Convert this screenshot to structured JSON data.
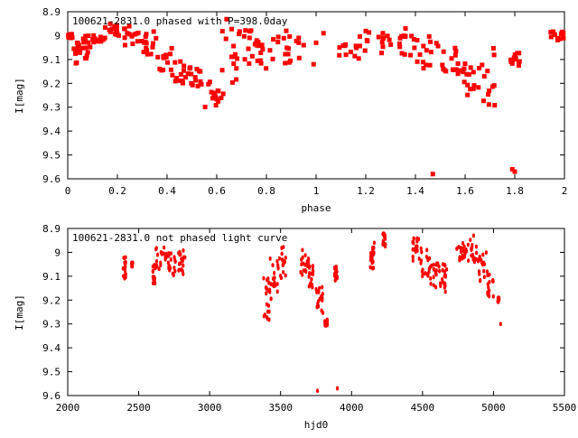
{
  "chart_data": [
    {
      "type": "scatter",
      "title": "100621-2831.0  phased with P=398.0day",
      "xlabel": "phase",
      "ylabel": "I[mag]",
      "xlim": [
        0,
        2
      ],
      "ylim": [
        9.6,
        8.9
      ],
      "y_inverted": true,
      "xticks": [
        "0",
        "0.2",
        "0.4",
        "0.6",
        "0.8",
        "1",
        "1.2",
        "1.4",
        "1.6",
        "1.8",
        "2"
      ],
      "yticks": [
        "8.9",
        "9",
        "9.1",
        "9.2",
        "9.3",
        "9.4",
        "9.5",
        "9.6"
      ],
      "marker_color": "#ff0000",
      "marker": "star",
      "grid": false,
      "segments": [
        [
          0.0,
          0.02,
          8.99,
          9.01
        ],
        [
          0.02,
          0.05,
          9.02,
          9.13
        ],
        [
          0.05,
          0.1,
          9.0,
          9.1
        ],
        [
          0.1,
          0.15,
          8.99,
          9.03
        ],
        [
          0.15,
          0.22,
          8.95,
          9.0
        ],
        [
          0.22,
          0.3,
          8.96,
          9.05
        ],
        [
          0.3,
          0.36,
          8.98,
          9.08
        ],
        [
          0.36,
          0.42,
          9.05,
          9.15
        ],
        [
          0.42,
          0.48,
          9.1,
          9.2
        ],
        [
          0.48,
          0.55,
          9.13,
          9.22
        ],
        [
          0.55,
          0.62,
          9.18,
          9.3
        ],
        [
          0.62,
          0.68,
          8.93,
          9.25
        ],
        [
          0.68,
          0.76,
          8.97,
          9.12
        ],
        [
          0.76,
          0.84,
          9.0,
          9.15
        ],
        [
          0.84,
          0.94,
          9.0,
          9.12
        ],
        [
          1.08,
          1.18,
          8.99,
          9.1
        ],
        [
          1.18,
          1.3,
          8.98,
          9.08
        ],
        [
          1.3,
          1.4,
          9.0,
          9.1
        ],
        [
          1.4,
          1.5,
          9.0,
          9.14
        ],
        [
          1.5,
          1.58,
          9.05,
          9.16
        ],
        [
          1.58,
          1.64,
          9.1,
          9.25
        ],
        [
          1.64,
          1.72,
          9.05,
          9.3
        ],
        [
          1.78,
          1.82,
          9.07,
          9.13
        ],
        [
          1.94,
          2.0,
          8.98,
          9.02
        ]
      ],
      "points": [
        [
          0.99,
          9.12
        ],
        [
          0.88,
          8.98
        ],
        [
          0.93,
          9.03
        ],
        [
          0.95,
          9.04
        ],
        [
          1.0,
          9.03
        ],
        [
          1.03,
          8.99
        ],
        [
          1.36,
          8.97
        ],
        [
          1.47,
          9.58
        ],
        [
          1.8,
          9.57
        ],
        [
          1.79,
          9.56
        ]
      ]
    },
    {
      "type": "scatter",
      "title": "100621-2831.0  not phased light curve",
      "xlabel": "hjd0",
      "ylabel": "I[mag]",
      "xlim": [
        2000,
        5500
      ],
      "ylim": [
        9.6,
        8.9
      ],
      "y_inverted": true,
      "xticks": [
        "2000",
        "2500",
        "3000",
        "3500",
        "4000",
        "4500",
        "5000",
        "5500"
      ],
      "yticks": [
        "8.9",
        "9",
        "9.1",
        "9.2",
        "9.3",
        "9.4",
        "9.5",
        "9.6"
      ],
      "marker_color": "#ff0000",
      "marker": "dot",
      "grid": false,
      "segments": [
        [
          2390,
          2410,
          9.02,
          9.12
        ],
        [
          2450,
          2460,
          9.04,
          9.06
        ],
        [
          2600,
          2620,
          9.05,
          9.14
        ],
        [
          2620,
          2700,
          8.98,
          9.08
        ],
        [
          2700,
          2760,
          9.0,
          9.1
        ],
        [
          2780,
          2830,
          8.99,
          9.1
        ],
        [
          3380,
          3420,
          9.1,
          9.29
        ],
        [
          3420,
          3480,
          9.02,
          9.2
        ],
        [
          3480,
          3540,
          8.97,
          9.12
        ],
        [
          3640,
          3700,
          8.99,
          9.1
        ],
        [
          3700,
          3740,
          9.05,
          9.15
        ],
        [
          3740,
          3800,
          9.14,
          9.26
        ],
        [
          3810,
          3830,
          9.28,
          9.31
        ],
        [
          3880,
          3900,
          9.06,
          9.12
        ],
        [
          4130,
          4160,
          8.98,
          9.07
        ],
        [
          4220,
          4240,
          8.92,
          8.98
        ],
        [
          4430,
          4480,
          8.94,
          9.04
        ],
        [
          4480,
          4550,
          8.98,
          9.1
        ],
        [
          4550,
          4620,
          9.04,
          9.15
        ],
        [
          4620,
          4670,
          9.05,
          9.18
        ],
        [
          4740,
          4800,
          8.96,
          9.04
        ],
        [
          4800,
          4880,
          8.94,
          9.05
        ],
        [
          4880,
          4950,
          9.0,
          9.13
        ],
        [
          4950,
          5000,
          9.08,
          9.2
        ],
        [
          5030,
          5040,
          9.19,
          9.21
        ]
      ],
      "points": [
        [
          5050,
          9.3
        ],
        [
          3760,
          9.58
        ],
        [
          3900,
          9.57
        ],
        [
          4160,
          8.96
        ],
        [
          4860,
          8.93
        ]
      ]
    }
  ]
}
